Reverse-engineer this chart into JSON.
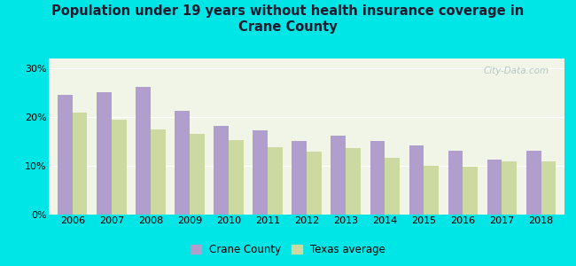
{
  "title": "Population under 19 years without health insurance coverage in\nCrane County",
  "years": [
    2006,
    2007,
    2008,
    2009,
    2010,
    2011,
    2012,
    2013,
    2014,
    2015,
    2016,
    2017,
    2018
  ],
  "crane_county": [
    24.5,
    25.0,
    26.2,
    21.2,
    18.2,
    17.2,
    15.0,
    16.2,
    15.0,
    14.2,
    13.0,
    11.2,
    13.0
  ],
  "texas_avg": [
    20.8,
    19.4,
    17.4,
    16.5,
    15.3,
    13.8,
    12.9,
    13.5,
    11.5,
    10.0,
    9.7,
    10.9,
    10.9
  ],
  "crane_color": "#b09fcc",
  "texas_color": "#ccd9a0",
  "background_outer": "#00e5e5",
  "background_inner": "#f0f5e8",
  "ylim": [
    0,
    32
  ],
  "yticks": [
    0,
    10,
    20,
    30
  ],
  "yticklabels": [
    "0%",
    "10%",
    "20%",
    "30%"
  ],
  "legend_crane": "Crane County",
  "legend_texas": "Texas average",
  "watermark": "City-Data.com"
}
